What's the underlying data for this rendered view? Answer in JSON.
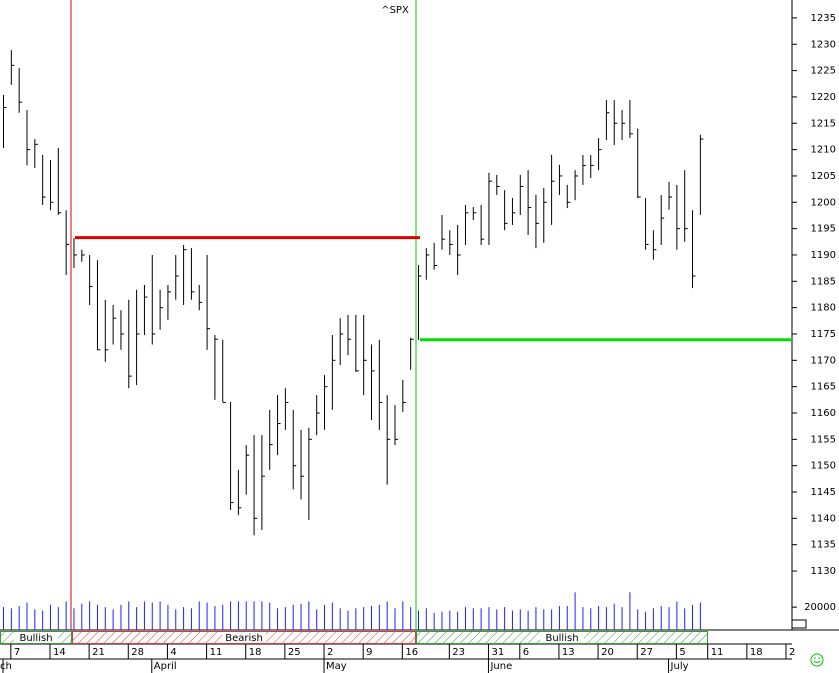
{
  "chart_data": {
    "type": "ohlc",
    "title": "^SPX",
    "categories": [
      null,
      "7",
      null,
      null,
      null,
      null,
      "14",
      null,
      null,
      null,
      null,
      "21",
      null,
      null,
      null,
      null,
      "28",
      null,
      null,
      null,
      null,
      "4",
      null,
      null,
      null,
      null,
      "11",
      null,
      null,
      null,
      null,
      "18",
      null,
      null,
      null,
      null,
      "25",
      null,
      null,
      null,
      null,
      "2",
      null,
      null,
      null,
      null,
      "9",
      null,
      null,
      null,
      null,
      "16",
      null,
      null,
      null,
      null,
      null,
      "23",
      null,
      null,
      null,
      null,
      "31",
      null,
      null,
      null,
      "6",
      null,
      null,
      null,
      null,
      "13",
      null,
      null,
      null,
      null,
      "20",
      null,
      null,
      null,
      null,
      "27",
      null,
      null,
      null,
      null,
      "5",
      null,
      null,
      null,
      "11",
      null,
      null,
      null,
      null,
      "18",
      null,
      null,
      null,
      null,
      "2"
    ],
    "months": [
      "ch",
      null,
      null,
      null,
      null,
      null,
      null,
      null,
      null,
      null,
      null,
      null,
      null,
      null,
      null,
      null,
      null,
      null,
      null,
      "April",
      null,
      null,
      null,
      null,
      null,
      null,
      null,
      null,
      null,
      null,
      null,
      null,
      null,
      null,
      null,
      null,
      null,
      null,
      null,
      null,
      null,
      "May",
      null,
      null,
      null,
      null,
      null,
      null,
      null,
      null,
      null,
      null,
      null,
      null,
      null,
      null,
      null,
      null,
      null,
      null,
      null,
      null,
      "June",
      null,
      null,
      null,
      null,
      null,
      null,
      null,
      null,
      null,
      null,
      null,
      null,
      null,
      null,
      null,
      null,
      null,
      null,
      null,
      null,
      null,
      null,
      "July",
      null,
      null,
      null,
      null,
      null,
      null,
      null,
      null,
      null,
      null,
      null,
      null,
      null,
      null,
      null
    ],
    "high": [
      1220.4,
      1228.9,
      1225.5,
      1217.5,
      1212,
      1209,
      1208,
      1210.3,
      1198.5,
      1193.2,
      1191,
      1190,
      1189,
      1181.5,
      1180.5,
      1179.5,
      1181.5,
      1183.4,
      1184.3,
      1190,
      1183.4,
      1184.3,
      1190,
      1191.9,
      1191.3,
      1184.3,
      1190,
      1174.8,
      1173.9,
      1162.1,
      1149.2,
      1153.9,
      1155.8,
      1155.8,
      1160.6,
      1163.4,
      1164.7,
      1160.6,
      1156.8,
      1157.2,
      1163.4,
      1167.2,
      1174.8,
      1178,
      1178.6,
      1178.6,
      1178.6,
      1173,
      1173.9,
      1163.4,
      1161.5,
      1166.3,
      1174.3,
      1188.1,
      1191.3,
      1192.3,
      1197.6,
      1194.7,
      1195.7,
      1199.5,
      1199.1,
      1199.5,
      1205.6,
      1205.2,
      1202.3,
      1200.8,
      1205.2,
      1206.1,
      1201.4,
      1202.7,
      1209,
      1207.1,
      1203.3,
      1206.1,
      1209,
      1209,
      1212.2,
      1219.4,
      1219.4,
      1217.5,
      1219.4,
      1214,
      1200.8,
      1194.7,
      1201.4,
      1203.9,
      1203.3,
      1206.1,
      1198.5,
      1212.8,
      null,
      null,
      null,
      null,
      null,
      null,
      null,
      null,
      null,
      null,
      null
    ],
    "low": [
      1210.3,
      1222.3,
      1217,
      1207,
      1206.5,
      1199.5,
      1198.5,
      1197.6,
      1186.2,
      1187.5,
      1188.7,
      1180.5,
      1172,
      1169.7,
      1173,
      1172,
      1164.7,
      1165.3,
      1174.8,
      1173,
      1175.8,
      1177.7,
      1181.5,
      1180.5,
      1181.5,
      1179.5,
      1172,
      1162.5,
      1162.1,
      1141.6,
      1140.6,
      1144.5,
      1136.8,
      1137.8,
      1149.2,
      1152,
      1156.8,
      1145.5,
      1143.6,
      1139.7,
      1155.8,
      1156.8,
      1160.6,
      1169.1,
      1171,
      1167.8,
      1163.4,
      1158.7,
      1156.8,
      1146.4,
      1153.9,
      1160.2,
      1168.2,
      1173.9,
      1185.3,
      1187.2,
      1191,
      1190,
      1186.2,
      1191.9,
      1196.6,
      1191.9,
      1191.9,
      1201.4,
      1194.7,
      1195.7,
      1197.6,
      1193.8,
      1191.3,
      1192.3,
      1195.7,
      1201.4,
      1198.9,
      1200.4,
      1203.3,
      1204.6,
      1206.1,
      1211.8,
      1210.9,
      1211.8,
      1212.2,
      1200.8,
      1191,
      1189.1,
      1191.9,
      1198.6,
      1191,
      1192.5,
      1183.7,
      1197.6,
      null,
      null,
      null,
      null,
      null,
      null,
      null,
      null,
      null,
      null,
      null
    ],
    "close": [
      1218,
      1226,
      1219,
      1210,
      1211,
      1201,
      1200,
      1198,
      1192,
      1190,
      1190,
      1184,
      1172,
      1172,
      1178,
      1175,
      1167,
      1175,
      1182,
      1175,
      1180,
      1183,
      1186,
      1191,
      1183,
      1181,
      1176,
      1174,
      1162,
      1143,
      1142,
      1152,
      1140,
      1148,
      1154,
      1158,
      1162,
      1150,
      1148,
      1155,
      1160,
      1165,
      1170,
      1175,
      1174,
      1168,
      1170,
      1168,
      1162,
      1155,
      1155,
      1162,
      1174,
      1186,
      1190,
      1188,
      1193,
      1192,
      1190,
      1198,
      1198,
      1193,
      1204,
      1203,
      1196,
      1198,
      1203,
      1199,
      1196,
      1200,
      1204,
      1205,
      1200,
      1205,
      1207,
      1207,
      1210,
      1217,
      1215,
      1215,
      1213,
      1201,
      1192,
      1191,
      1197,
      1201,
      1195,
      1195,
      1186,
      1212,
      null,
      null,
      null,
      null,
      null,
      null,
      null,
      null,
      null,
      null,
      null
    ],
    "volume": [
      20000,
      19000,
      21000,
      24000,
      18000,
      17000,
      22000,
      20000,
      25000,
      19000,
      23000,
      25000,
      22000,
      20000,
      18000,
      22000,
      25000,
      20000,
      25000,
      24000,
      25000,
      22000,
      18000,
      20000,
      19000,
      25000,
      24000,
      21000,
      22000,
      25000,
      25000,
      25000,
      25000,
      25000,
      24000,
      19000,
      20000,
      22000,
      23000,
      25000,
      18000,
      22000,
      24000,
      19000,
      17000,
      19000,
      20000,
      21000,
      22000,
      25000,
      19000,
      25000,
      20000,
      17000,
      19000,
      15000,
      16000,
      17000,
      16000,
      20000,
      19000,
      19000,
      20000,
      18000,
      20000,
      17000,
      18000,
      17000,
      20000,
      18000,
      18000,
      21000,
      21000,
      33000,
      20000,
      19000,
      21000,
      20000,
      23000,
      20000,
      33000,
      18000,
      16000,
      19000,
      21000,
      20000,
      25000,
      19000,
      22000,
      24000,
      null,
      null,
      null,
      null,
      null,
      null,
      null,
      null,
      null,
      null,
      null
    ],
    "bar_color": "#000000",
    "volume_color": "#2020ff",
    "ylim": [
      1126.4,
      1238.4
    ],
    "yticks": [
      1130,
      1135,
      1140,
      1145,
      1150,
      1155,
      1160,
      1165,
      1170,
      1175,
      1180,
      1185,
      1190,
      1195,
      1200,
      1205,
      1210,
      1215,
      1220,
      1225,
      1230,
      1235
    ],
    "volume_lim": [
      0,
      35000
    ],
    "volume_ticks": [
      20000
    ],
    "levels": [
      {
        "value": 1193.3,
        "color": "#e00000"
      },
      {
        "value": 1173.9,
        "color": "#00e000"
      }
    ],
    "signals": [
      {
        "label": "Bullish",
        "color": "#3a9a3a"
      },
      {
        "label": "Bearish",
        "color": "#d04040"
      },
      {
        "label": "Bullish",
        "color": "#3a9a3a"
      }
    ]
  }
}
